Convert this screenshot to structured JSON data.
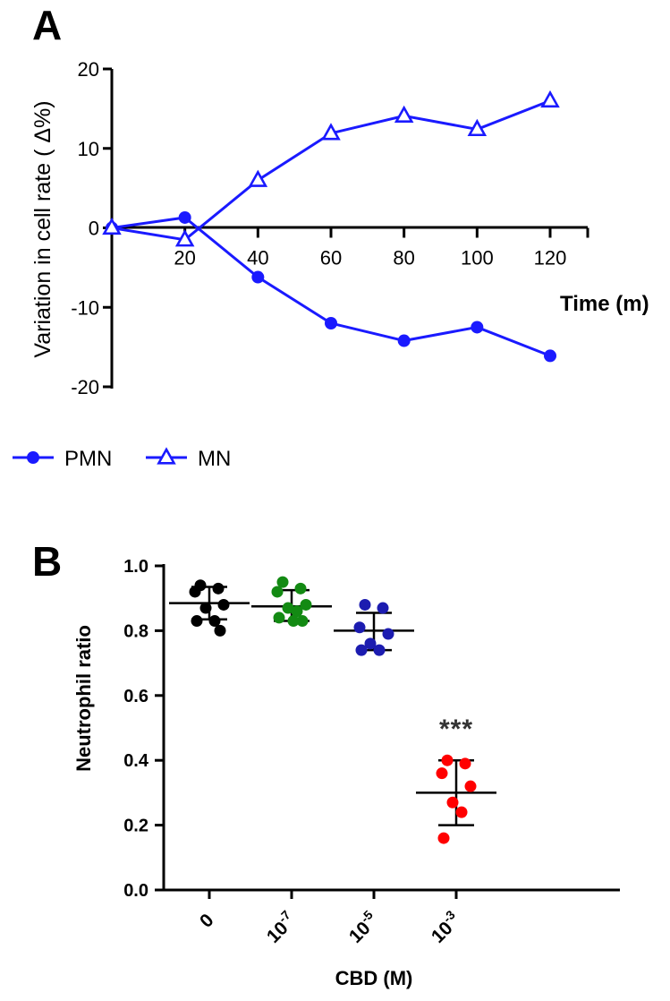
{
  "chart_data": [
    {
      "panel": "A",
      "type": "line",
      "xlabel": "Time (m)",
      "ylabel": "Variation in cell rate ( Δ%)",
      "x": [
        0,
        20,
        40,
        60,
        80,
        100,
        120
      ],
      "x_tick_labels": [
        "20",
        "40",
        "60",
        "80",
        "100",
        "120"
      ],
      "xlim": [
        0,
        130
      ],
      "ylim": [
        -20,
        20
      ],
      "y_ticks": [
        "20",
        "10",
        "0",
        "-10",
        "-20"
      ],
      "series": [
        {
          "name": "PMN",
          "marker": "circle",
          "values": [
            0,
            1.3,
            -6.2,
            -12.0,
            -14.2,
            -12.5,
            -16.1
          ]
        },
        {
          "name": "MN",
          "marker": "triangle-open",
          "values": [
            0,
            -1.5,
            6.0,
            11.9,
            14.1,
            12.4,
            16.0
          ]
        }
      ],
      "legend": [
        "PMN",
        "MN"
      ],
      "color": "#1a1aff"
    },
    {
      "panel": "B",
      "type": "scatter",
      "xlabel": "CBD (M)",
      "ylabel": "Neutrophil ratio",
      "ylim": [
        0,
        1.0
      ],
      "y_ticks": [
        "0.0",
        "0.2",
        "0.4",
        "0.6",
        "0.8",
        "1.0"
      ],
      "categories": [
        {
          "base": "0",
          "exp": ""
        },
        {
          "base": "10",
          "exp": "-7"
        },
        {
          "base": "10",
          "exp": "-5"
        },
        {
          "base": "10",
          "exp": "-3"
        }
      ],
      "groups": [
        {
          "color": "#000000",
          "mean": 0.885,
          "sd_low": 0.835,
          "sd_high": 0.935,
          "points": [
            0.94,
            0.93,
            0.92,
            0.88,
            0.87,
            0.83,
            0.83,
            0.8
          ]
        },
        {
          "color": "#138a13",
          "mean": 0.875,
          "sd_low": 0.83,
          "sd_high": 0.925,
          "points": [
            0.95,
            0.93,
            0.92,
            0.88,
            0.87,
            0.86,
            0.84,
            0.83,
            0.83
          ]
        },
        {
          "color": "#1c1cb0",
          "mean": 0.8,
          "sd_low": 0.74,
          "sd_high": 0.855,
          "points": [
            0.88,
            0.87,
            0.81,
            0.79,
            0.76,
            0.74,
            0.74
          ]
        },
        {
          "color": "#ff0000",
          "mean": 0.3,
          "sd_low": 0.2,
          "sd_high": 0.4,
          "points": [
            0.4,
            0.39,
            0.36,
            0.32,
            0.27,
            0.24,
            0.16
          ]
        }
      ],
      "annotation": {
        "category_index": 3,
        "text": "***"
      }
    }
  ]
}
